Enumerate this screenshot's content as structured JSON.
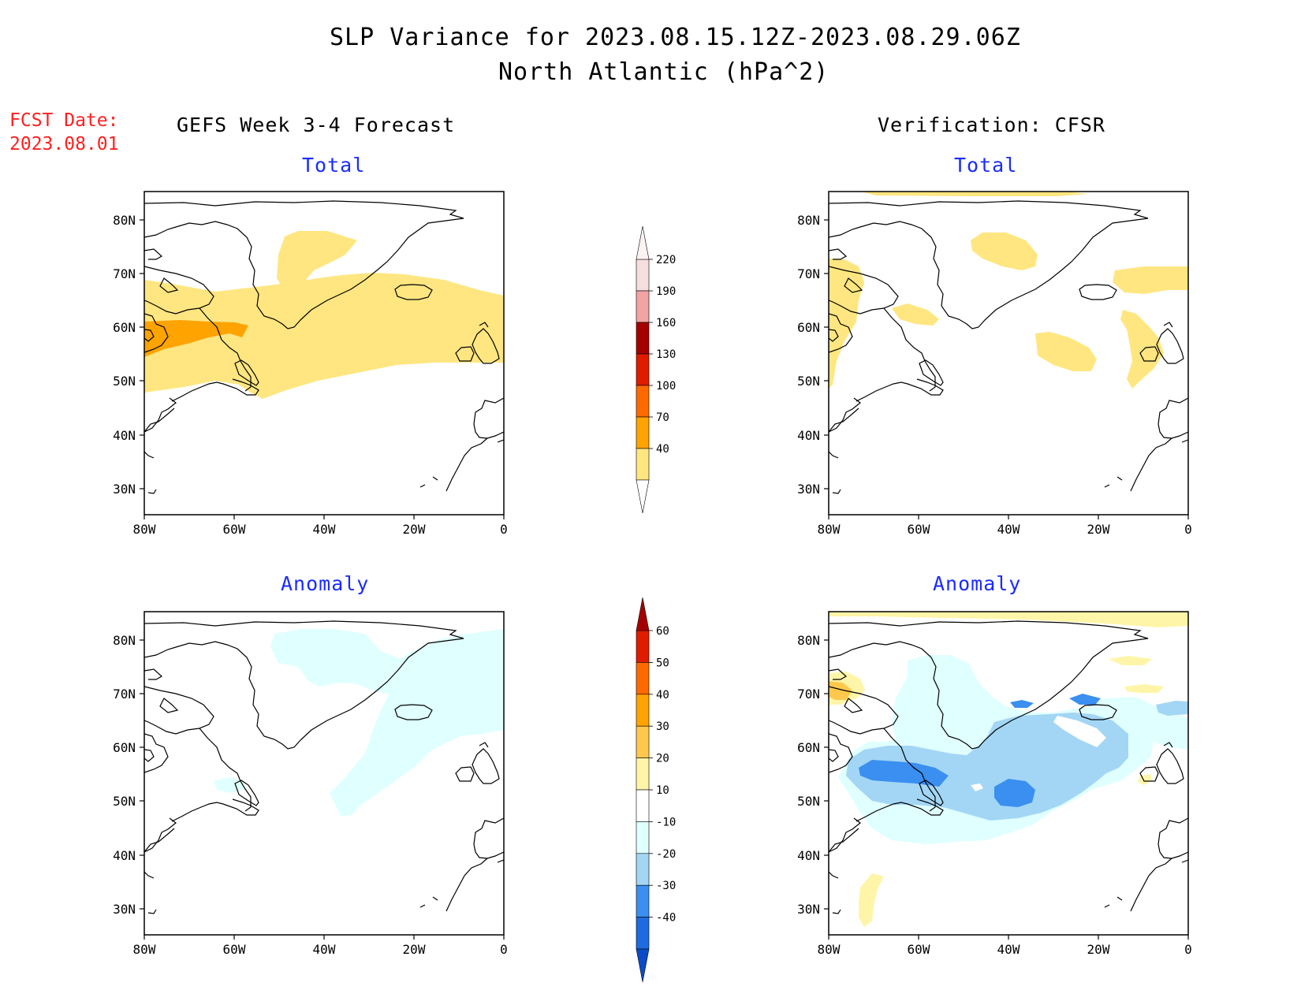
{
  "header": {
    "title_line1": "SLP Variance for 2023.08.15.12Z-2023.08.29.06Z",
    "title_line2": "North Atlantic (hPa^2)",
    "fcst_line1": "FCST Date:",
    "fcst_line2": "2023.08.01",
    "left_column": "GEFS Week 3-4 Forecast",
    "right_column": "Verification: CFSR"
  },
  "panels": [
    {
      "id": "fcst-total",
      "title": "Total"
    },
    {
      "id": "verif-total",
      "title": "Total"
    },
    {
      "id": "fcst-anomaly",
      "title": "Anomaly"
    },
    {
      "id": "verif-anomaly",
      "title": "Anomaly"
    }
  ],
  "axes": {
    "lat_labels": [
      "80N",
      "70N",
      "60N",
      "50N",
      "40N",
      "30N"
    ],
    "lon_labels": [
      "80W",
      "60W",
      "40W",
      "20W",
      "0"
    ]
  },
  "colorbars": {
    "total": {
      "levels": [
        "220",
        "190",
        "160",
        "130",
        "100",
        "70",
        "40"
      ],
      "colors": [
        "#f6dede",
        "#f2a3a3",
        "#a50000",
        "#e11b00",
        "#ff6a00",
        "#ffa300",
        "#ffe680"
      ]
    },
    "anomaly": {
      "levels": [
        "60",
        "50",
        "40",
        "30",
        "20",
        "10",
        "-10",
        "-20",
        "-30",
        "-40"
      ],
      "colors": [
        "#a50000",
        "#e11b00",
        "#ff6a00",
        "#ffa300",
        "#ffc84d",
        "#fff5a8",
        "#ffffff",
        "#e0ffff",
        "#a3d6f5",
        "#3a8ff0",
        "#1f6ae0",
        "#0a4cc8"
      ]
    }
  },
  "map_colors": {
    "total_light": "#ffe680",
    "total_orange": "#ffa300",
    "anom_pos_light": "#fff5a8",
    "anom_pos_mid": "#ffc84d",
    "anom_neg_1": "#e0ffff",
    "anom_neg_2": "#a3d6f5",
    "anom_neg_3": "#3a8ff0"
  }
}
